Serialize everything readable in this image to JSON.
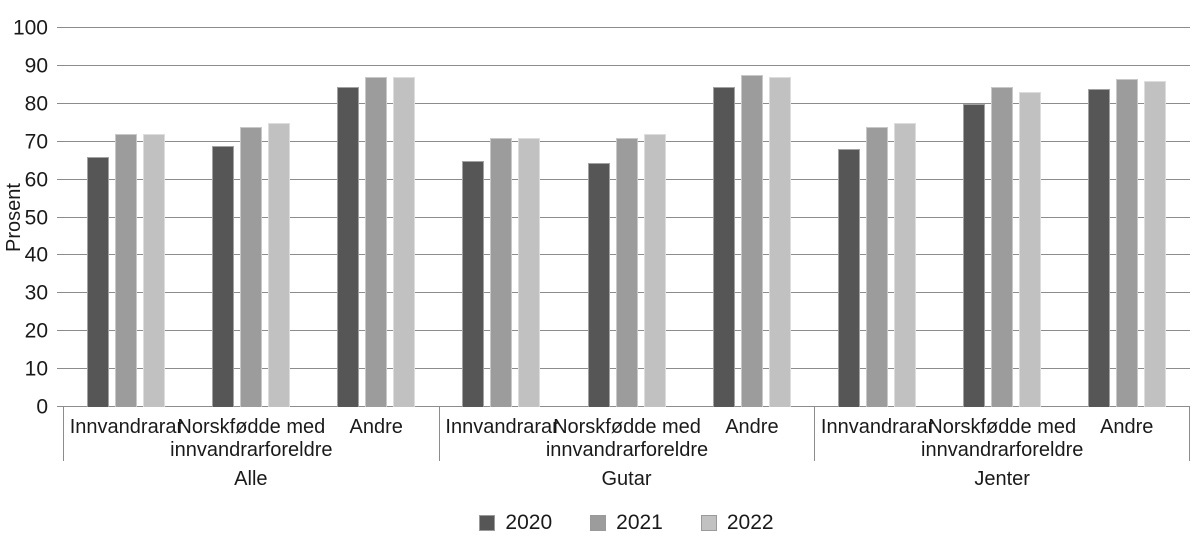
{
  "chart_data": {
    "type": "bar",
    "title": "",
    "ylabel": "Prosent",
    "ylim": [
      0,
      100
    ],
    "yticks": [
      0,
      10,
      20,
      30,
      40,
      50,
      60,
      70,
      80,
      90,
      100
    ],
    "grid": true,
    "legend_position": "bottom",
    "colors": {
      "grid": "#8c8c8c",
      "text": "#1a1a1a",
      "background": "#ffffff"
    },
    "series": [
      {
        "name": "2020",
        "color": "#565656"
      },
      {
        "name": "2021",
        "color": "#9c9c9c"
      },
      {
        "name": "2022",
        "color": "#c1c1c1"
      }
    ],
    "groups": [
      {
        "label": "Alle",
        "categories": [
          {
            "label": "Innvandrarar",
            "lines": [
              "Innvandrarar"
            ],
            "values": [
              66,
              72,
              72
            ]
          },
          {
            "label": "Norskfødde med innvandrarforeldre",
            "lines": [
              "Norskfødde med",
              "innvandrarforeldre"
            ],
            "values": [
              69,
              74,
              75
            ]
          },
          {
            "label": "Andre",
            "lines": [
              "Andre"
            ],
            "values": [
              84.5,
              87,
              87
            ]
          }
        ]
      },
      {
        "label": "Gutar",
        "categories": [
          {
            "label": "Innvandrarar",
            "lines": [
              "Innvandrarar"
            ],
            "values": [
              65,
              71,
              71
            ]
          },
          {
            "label": "Norskfødde med innvandrarforeldre",
            "lines": [
              "Norskfødde med",
              "innvandrarforeldre"
            ],
            "values": [
              64.5,
              71,
              72
            ]
          },
          {
            "label": "Andre",
            "lines": [
              "Andre"
            ],
            "values": [
              84.5,
              87.5,
              87
            ]
          }
        ]
      },
      {
        "label": "Jenter",
        "categories": [
          {
            "label": "Innvandrarar",
            "lines": [
              "Innvandrarar"
            ],
            "values": [
              68,
              74,
              75
            ]
          },
          {
            "label": "Norskfødde med innvandrarforeldre",
            "lines": [
              "Norskfødde med",
              "innvandrarforeldre"
            ],
            "values": [
              80,
              84.5,
              83
            ]
          },
          {
            "label": "Andre",
            "lines": [
              "Andre"
            ],
            "values": [
              84,
              86.5,
              86
            ]
          }
        ]
      }
    ]
  }
}
